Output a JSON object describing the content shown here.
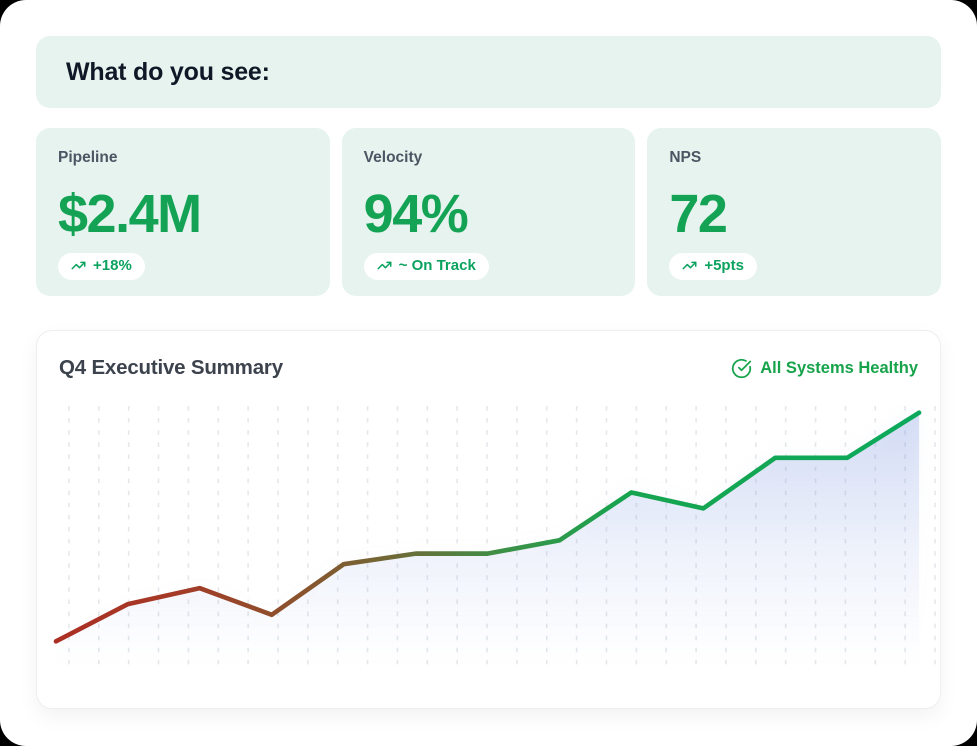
{
  "header": {
    "title": "What do you see:"
  },
  "kpis": [
    {
      "label": "Pipeline",
      "value": "$2.4M",
      "badge": "+18%",
      "badge_icon": "trending-up-icon"
    },
    {
      "label": "Velocity",
      "value": "94%",
      "badge": "~ On Track",
      "badge_icon": "trending-up-icon"
    },
    {
      "label": "NPS",
      "value": "72",
      "badge": "+5pts",
      "badge_icon": "trending-up-icon"
    }
  ],
  "summary": {
    "title": "Q4 Executive Summary",
    "status_label": "All Systems Healthy",
    "status_icon": "check-circle-icon"
  },
  "colors": {
    "page_bg": "#ffffff",
    "outer_bg": "#000000",
    "banner_bg": "#e6f3ee",
    "kpi_card_bg": "#e6f3ee",
    "heading_text": "#101828",
    "kpi_label_text": "#4b5563",
    "kpi_value_green": "#14a355",
    "badge_green": "#0ca25f",
    "status_green": "#16a34a",
    "summary_title_text": "#3d434d",
    "card_border": "#eceef1",
    "grid_line": "#e5e7eb",
    "line_start_red": "#ac2f23",
    "line_end_green": "#0ca95c",
    "area_fill_blue": "#6987dc"
  },
  "chart_data": {
    "type": "area",
    "title": "Q4 Executive Summary",
    "x": [
      1,
      2,
      3,
      4,
      5,
      6,
      7,
      8,
      9,
      10,
      11,
      12,
      13
    ],
    "values": [
      10,
      24,
      30,
      20,
      39,
      43,
      43,
      48,
      66,
      60,
      79,
      79,
      96
    ],
    "xlabel": "",
    "ylabel": "",
    "ylim": [
      0,
      100
    ],
    "axis_labels_visible": false,
    "grid": "vertical-dashed",
    "legend": "none",
    "line_gradient_left_to_right": [
      "#ac2f23",
      "#8a532d",
      "#6d6b37",
      "#3c9147",
      "#0ca95c"
    ],
    "area_fill": "vertical fade #6987dc 26% -> transparent"
  }
}
